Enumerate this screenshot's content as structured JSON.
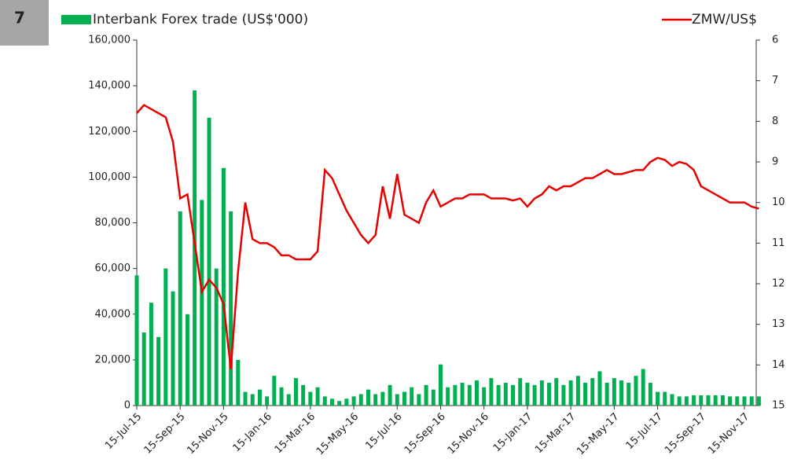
{
  "figure_number": "7",
  "chart_data": {
    "type": "bar",
    "categories": [
      "15-Jul-15",
      null,
      null,
      null,
      null,
      null,
      "15-Sep-15",
      null,
      null,
      null,
      null,
      null,
      "15-Nov-15",
      null,
      null,
      null,
      null,
      null,
      "15-Jan-16",
      null,
      null,
      null,
      null,
      null,
      "15-Mar-16",
      null,
      null,
      null,
      null,
      null,
      "15-May-16",
      null,
      null,
      null,
      null,
      null,
      "15-Jul-16",
      null,
      null,
      null,
      null,
      null,
      "15-Sep-16",
      null,
      null,
      null,
      null,
      null,
      "15-Nov-16",
      null,
      null,
      null,
      null,
      null,
      "15-Jan-17",
      null,
      null,
      null,
      null,
      null,
      "15-Mar-17",
      null,
      null,
      null,
      null,
      null,
      "15-May-17",
      null,
      null,
      null,
      null,
      null,
      "15-Jul-17",
      null,
      null,
      null,
      null,
      null,
      "15-Sep-17",
      null,
      null,
      null,
      null,
      null,
      "15-Nov-17",
      null,
      null
    ],
    "series": [
      {
        "name": "Interbank Forex trade (US$'000)",
        "type": "bar",
        "color": "#00b050",
        "values": [
          57000,
          32000,
          45000,
          30000,
          60000,
          50000,
          85000,
          40000,
          138000,
          90000,
          126000,
          60000,
          104000,
          85000,
          20000,
          6000,
          5000,
          7000,
          4000,
          13000,
          8000,
          5000,
          12000,
          9000,
          6000,
          8000,
          4000,
          3000,
          2000,
          3000,
          4000,
          5000,
          7000,
          5000,
          6000,
          9000,
          5000,
          6000,
          8000,
          5000,
          9000,
          7000,
          18000,
          8000,
          9000,
          10000,
          9000,
          11000,
          8000,
          12000,
          9000,
          10000,
          9000,
          12000,
          10000,
          9000,
          11000,
          10000,
          12000,
          9000,
          11000,
          13000,
          10000,
          12000,
          15000,
          10000,
          12000,
          11000,
          10000,
          13000,
          16000,
          10000,
          6000,
          6000,
          5000,
          4000,
          4000,
          4500,
          4500,
          4500,
          4500,
          4500,
          4000,
          4000,
          4000,
          4000,
          4000
        ]
      },
      {
        "name": "ZMW/US$",
        "type": "line",
        "axis": "y2",
        "color": "#e60000",
        "values": [
          7.8,
          7.6,
          7.7,
          7.8,
          7.9,
          8.5,
          9.9,
          9.8,
          11.0,
          12.2,
          11.9,
          12.1,
          12.5,
          14.1,
          11.7,
          10.0,
          10.9,
          11.0,
          11.0,
          11.1,
          11.3,
          11.3,
          11.4,
          11.4,
          11.4,
          11.2,
          9.2,
          9.4,
          9.8,
          10.2,
          10.5,
          10.8,
          11.0,
          10.8,
          9.6,
          10.4,
          9.3,
          10.3,
          10.4,
          10.5,
          10.0,
          9.7,
          10.1,
          10.0,
          9.9,
          9.9,
          9.8,
          9.8,
          9.8,
          9.9,
          9.9,
          9.9,
          9.95,
          9.9,
          10.1,
          9.9,
          9.8,
          9.6,
          9.7,
          9.6,
          9.6,
          9.5,
          9.4,
          9.4,
          9.3,
          9.2,
          9.3,
          9.3,
          9.25,
          9.2,
          9.2,
          9.0,
          8.9,
          8.95,
          9.1,
          9.0,
          9.05,
          9.2,
          9.6,
          9.7,
          9.8,
          9.9,
          10.0,
          10.0,
          10.0,
          10.1,
          10.15
        ]
      }
    ],
    "ylim": [
      0,
      160000
    ],
    "yticks": [
      0,
      {
        "value": 20000,
        "label": "20,000"
      },
      {
        "value": 40000,
        "label": "40,000"
      },
      {
        "value": 60000,
        "label": "60,000"
      },
      {
        "value": 80000,
        "label": "80,000"
      },
      {
        "value": 100000,
        "label": "100,000"
      },
      {
        "value": 120000,
        "label": "120,000"
      },
      {
        "value": 140000,
        "label": "140,000"
      },
      {
        "value": 160000,
        "label": "160,000"
      }
    ],
    "y2lim": [
      15,
      6
    ],
    "y2inverted": true,
    "y2ticks": [
      6,
      7,
      8,
      9,
      10,
      11,
      12,
      13,
      14,
      15
    ],
    "grid": false
  }
}
